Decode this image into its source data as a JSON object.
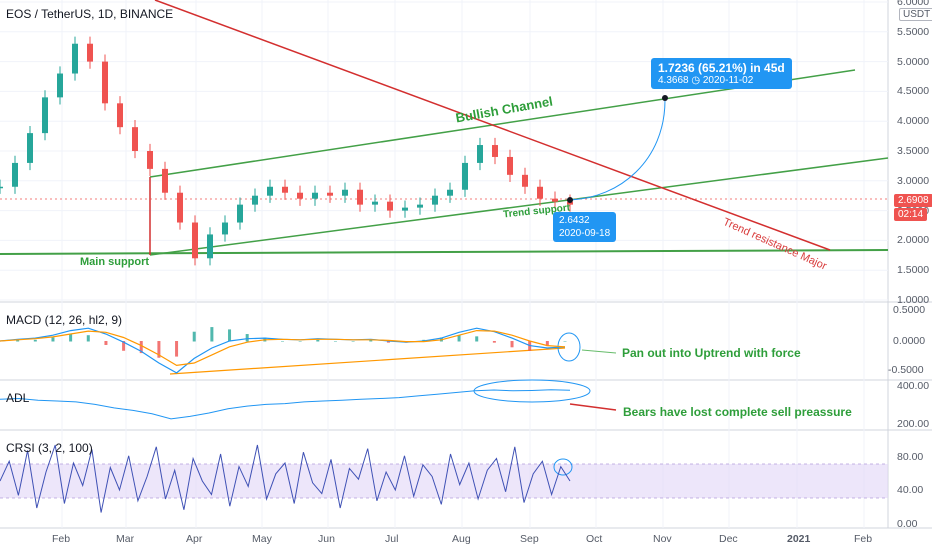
{
  "header": {
    "title": "EOS / TetherUS, 1D, BINANCE",
    "currency_button": "USDT"
  },
  "price_panel": {
    "ticks": [
      "6.0000",
      "5.5000",
      "5.0000",
      "4.5000",
      "4.0000",
      "3.5000",
      "3.0000",
      "2.5000",
      "2.0000",
      "1.5000",
      "1.0000"
    ],
    "last_price": "2.6908",
    "countdown": "02:14",
    "last_price_color": "#ef5350"
  },
  "macd_panel": {
    "title": "MACD (12, 26, hl2, 9)",
    "ticks": [
      "0.5000",
      "0.0000",
      "-0.5000"
    ]
  },
  "adl_panel": {
    "title": "ADL",
    "ticks": [
      "400.00",
      "200.00"
    ]
  },
  "crsi_panel": {
    "title": "CRSI (3, 2, 100)",
    "ticks": [
      "80.00",
      "40.00",
      "0.00"
    ]
  },
  "x_axis": {
    "labels": [
      "Feb",
      "Mar",
      "Apr",
      "May",
      "Jun",
      "Jul",
      "Aug",
      "Sep",
      "Oct",
      "Nov",
      "Dec",
      "2021",
      "Feb"
    ]
  },
  "annotations": {
    "bullish_channel": "Bullish Channel",
    "trend_resistance": "Trend resistance Major",
    "main_support": "Main support",
    "trend_support": "Trend support",
    "macd_note": "Pan out into Uptrend with force",
    "adl_note": "Bears have lost complete sell preassure"
  },
  "projection": {
    "main": "1.7236 (65.21%) in 45d",
    "sub": "4.3668 ◷ 2020-11-02"
  },
  "support_point": {
    "price": "2.6432",
    "date": "2020-09-18"
  },
  "colors": {
    "up": "#26a69a",
    "down": "#ef5350",
    "channel": "#43a047",
    "resistance": "#d32f2f",
    "macd_line": "#2196f3",
    "signal_line": "#ff9800",
    "annotation_blue": "#2196f3",
    "crsi_band": "#e1d5f7"
  },
  "chart_data": [
    {
      "type": "candlestick",
      "title": "EOS / TetherUS, 1D, BINANCE",
      "x_range": [
        "2020-01-15",
        "2021-02-28"
      ],
      "ylim": [
        1.0,
        6.0
      ],
      "series": [
        {
          "name": "",
          "values": [
            2.9,
            3.3,
            3.8,
            4.4,
            4.8,
            5.3,
            5.0,
            4.3,
            3.9,
            3.5,
            3.2,
            2.8,
            2.3,
            1.7,
            2.1,
            2.3,
            2.6,
            2.75,
            2.9,
            2.8,
            2.7,
            2.8,
            2.75,
            2.85,
            2.6,
            2.65,
            2.5,
            2.55,
            2.6,
            2.75,
            2.85,
            3.3,
            3.6,
            3.4,
            3.1,
            2.9,
            2.7,
            2.65,
            2.6
          ]
        }
      ]
    },
    {
      "type": "line",
      "title": "MACD (12, 26, hl2, 9)",
      "ylim": [
        -0.6,
        0.55
      ],
      "series": [
        {
          "name": "",
          "values": [
            0.0,
            0.03,
            0.05,
            0.1,
            0.18,
            0.22,
            0.12,
            -0.02,
            -0.18,
            -0.38,
            -0.55,
            -0.3,
            -0.12,
            0.0,
            0.04,
            0.05,
            0.03,
            0.02,
            0.04,
            0.03,
            0.02,
            0.03,
            0.0,
            -0.02,
            0.0,
            0.05,
            0.15,
            0.22,
            0.16,
            0.05,
            -0.08,
            -0.12,
            -0.1
          ]
        },
        {
          "name": "",
          "values": [
            0.0,
            0.02,
            0.04,
            0.07,
            0.12,
            0.17,
            0.15,
            0.06,
            -0.08,
            -0.24,
            -0.42,
            -0.38,
            -0.24,
            -0.1,
            -0.02,
            0.02,
            0.03,
            0.02,
            0.03,
            0.03,
            0.02,
            0.02,
            0.01,
            -0.01,
            -0.01,
            0.02,
            0.1,
            0.18,
            0.17,
            0.1,
            0.0,
            -0.08,
            -0.1
          ]
        }
      ]
    },
    {
      "type": "line",
      "title": "ADL",
      "ylim": [
        150,
        420
      ],
      "series": [
        {
          "name": "",
          "values": [
            330,
            335,
            325,
            320,
            315,
            300,
            280,
            265,
            245,
            215,
            230,
            250,
            275,
            290,
            300,
            305,
            315,
            320,
            325,
            330,
            335,
            340,
            350,
            360,
            370,
            380,
            385,
            380,
            382,
            386,
            383
          ]
        }
      ]
    },
    {
      "type": "line",
      "title": "CRSI (3, 2, 100)",
      "ylim": [
        0,
        100
      ],
      "series": [
        {
          "name": "",
          "values": [
            50,
            72,
            34,
            84,
            20,
            60,
            90,
            25,
            70,
            45,
            85,
            15,
            65,
            40,
            78,
            28,
            55,
            88,
            30,
            62,
            18,
            75,
            50,
            35,
            80,
            22,
            66,
            44,
            90,
            30,
            58,
            70,
            25,
            82,
            48,
            36,
            74,
            20,
            64,
            52,
            86,
            28,
            60,
            40,
            78,
            33,
            68,
            55,
            24,
            80,
            46,
            70,
            30,
            62,
            75,
            38,
            88,
            26,
            58,
            72,
            35,
            66,
            50
          ]
        }
      ]
    }
  ]
}
